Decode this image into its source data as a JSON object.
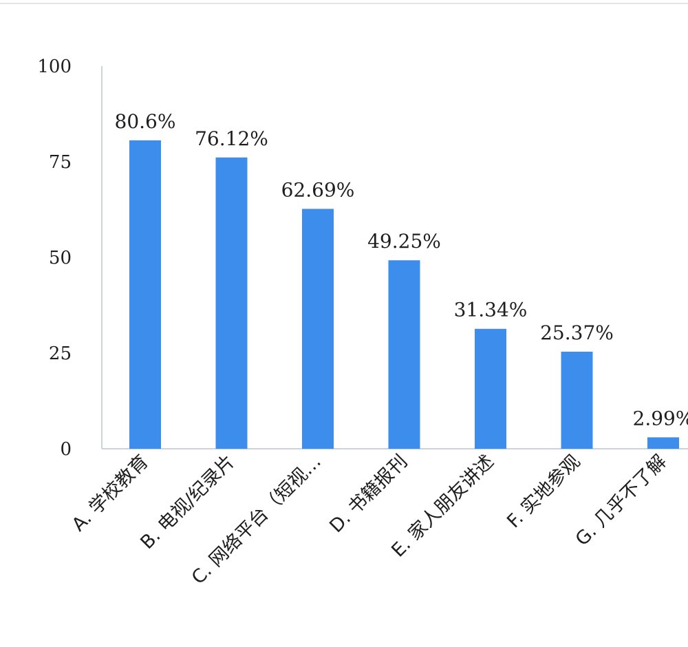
{
  "chart_data": {
    "type": "bar",
    "categories": [
      "A. 学校教育",
      "B. 电视/纪录片",
      "C. 网络平台（短视…",
      "D. 书籍报刊",
      "E. 家人朋友讲述",
      "F. 实地参观",
      "G. 几乎不了解"
    ],
    "values": [
      80.6,
      76.12,
      62.69,
      49.25,
      31.34,
      25.37,
      2.99
    ],
    "value_labels": [
      "80.6%",
      "76.12%",
      "62.69%",
      "49.25%",
      "31.34%",
      "25.37%",
      "2.99%"
    ],
    "yticks": [
      "0",
      "25",
      "50",
      "75",
      "100"
    ],
    "ylim": [
      0,
      100
    ],
    "title": "",
    "xlabel": "",
    "ylabel": "",
    "grid": false,
    "legend": "none",
    "colors": {
      "bar": "#3d8eec",
      "axis": "#c9d3e0",
      "text": "#1e1e1e"
    }
  }
}
